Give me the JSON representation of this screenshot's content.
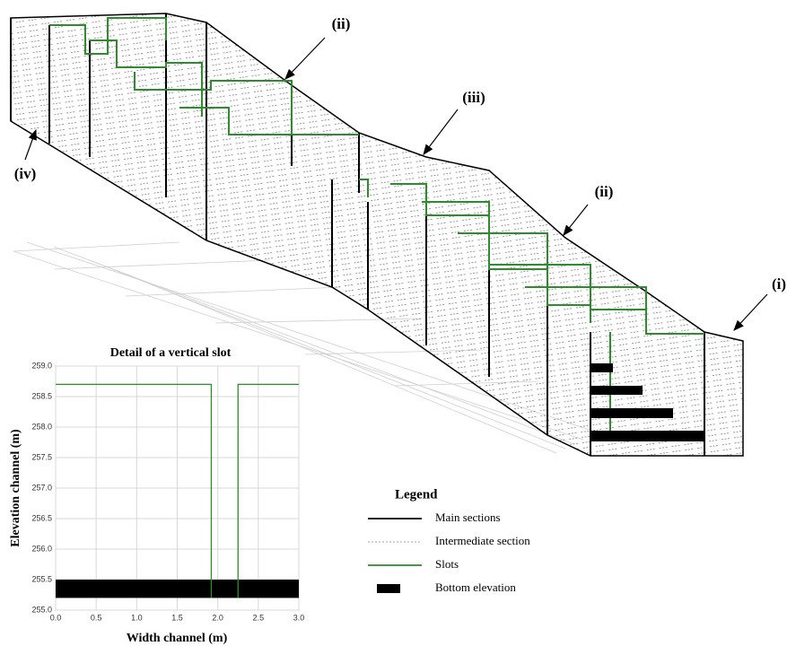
{
  "diagram": {
    "labels": [
      "(ii)",
      "(iii)",
      "(ii)",
      "(i)",
      "(iv)"
    ]
  },
  "legend": {
    "title": "Legend",
    "items": [
      {
        "name": "Main sections",
        "style": "solid",
        "color": "#000000"
      },
      {
        "name": "Intermediate section",
        "style": "dotted",
        "color": "#aaaaaa"
      },
      {
        "name": "Slots",
        "style": "solid",
        "color": "#2e8b2e"
      },
      {
        "name": "Bottom elevation",
        "style": "block",
        "color": "#000000"
      }
    ]
  },
  "chart_data": {
    "type": "line",
    "title": "Detail of a vertical slot",
    "x_label": "Width channel (m)",
    "y_label": "Elevation channel (m)",
    "xlim": [
      0,
      3
    ],
    "xticks": [
      {
        "value": 0,
        "label": "0.0"
      },
      0.5,
      {
        "value": 1,
        "label": "1.0"
      },
      1.5,
      {
        "value": 2,
        "label": "2.0"
      },
      2.5,
      {
        "value": 3,
        "label": "3.0"
      }
    ],
    "ylim": [
      255,
      259
    ],
    "yticks": [
      {
        "value": 255,
        "label": "255.0"
      },
      255.5,
      {
        "value": 256,
        "label": "256.0"
      },
      256.5,
      {
        "value": 257,
        "label": "257.0"
      },
      257.5,
      {
        "value": 258,
        "label": "258.0"
      },
      258.5,
      {
        "value": 259,
        "label": "259.0"
      }
    ],
    "grid": true,
    "series": [
      {
        "name": "Slots",
        "color": "#2e8b2e",
        "x": [
          0,
          1.92,
          1.92,
          null,
          2.25,
          2.25,
          3.0
        ],
        "values": [
          258.7,
          258.7,
          255.2,
          null,
          255.2,
          258.7,
          258.7
        ]
      }
    ],
    "bottom_elevation": {
      "name": "Bottom elevation",
      "color": "#000000",
      "range": [
        255.2,
        255.5
      ]
    }
  }
}
